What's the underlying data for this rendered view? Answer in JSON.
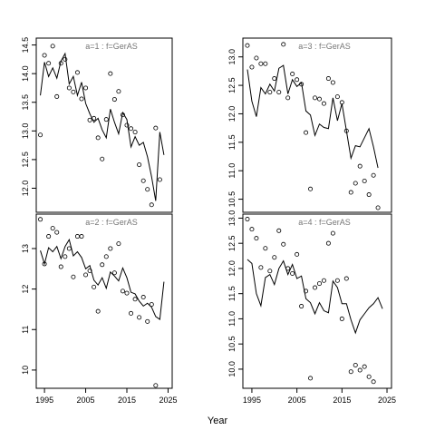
{
  "figure": {
    "xlabel": "Year"
  },
  "chart_data": [
    {
      "type": "line",
      "title": "a=1 : f=GerAS",
      "xlim": [
        1993,
        2026
      ],
      "ylim": [
        11.58,
        14.62
      ],
      "xticks": [
        1995,
        2005,
        2015,
        2025
      ],
      "yticks": [
        12.0,
        12.5,
        13.0,
        13.5,
        14.0,
        14.5
      ],
      "yticklabels": [
        "12.0",
        "12.5",
        "13.0",
        "13.5",
        "14.0",
        "14.5"
      ],
      "show_xticks": false,
      "x": [
        1994,
        1995,
        1996,
        1997,
        1998,
        1999,
        2000,
        2001,
        2002,
        2003,
        2004,
        2005,
        2006,
        2007,
        2008,
        2009,
        2010,
        2011,
        2012,
        2013,
        2014,
        2015,
        2016,
        2017,
        2018,
        2019,
        2020,
        2021,
        2022,
        2023,
        2024
      ],
      "series": [
        {
          "style": "points",
          "values": [
            12.93,
            14.32,
            14.18,
            14.48,
            13.6,
            14.18,
            14.25,
            13.75,
            13.68,
            14.02,
            13.56,
            13.75,
            13.19,
            13.22,
            12.88,
            12.51,
            13.2,
            14.0,
            13.55,
            13.69,
            13.28,
            13.1,
            13.04,
            12.98,
            12.41,
            12.13,
            11.98,
            11.71,
            13.05,
            12.15,
            null
          ]
        },
        {
          "style": "line",
          "values": [
            13.62,
            14.2,
            13.95,
            14.1,
            13.92,
            14.22,
            14.35,
            13.82,
            13.95,
            13.62,
            13.85,
            13.48,
            13.3,
            13.15,
            13.22,
            13.02,
            12.88,
            13.38,
            13.15,
            12.95,
            13.32,
            13.2,
            12.72,
            12.9,
            12.75,
            12.8,
            12.55,
            12.2,
            11.78,
            12.98,
            12.58
          ]
        }
      ]
    },
    {
      "type": "line",
      "title": "a=3 : f=GerAS",
      "xlim": [
        1993,
        2026
      ],
      "ylim": [
        10.27,
        13.33
      ],
      "xticks": [
        1995,
        2005,
        2015,
        2025
      ],
      "yticks": [
        10.5,
        11.0,
        11.5,
        12.0,
        12.5,
        13.0
      ],
      "yticklabels": [
        "10.5",
        "11.0",
        "11.5",
        "12.0",
        "12.5",
        "13.0"
      ],
      "show_xticks": false,
      "x": [
        1994,
        1995,
        1996,
        1997,
        1998,
        1999,
        2000,
        2001,
        2002,
        2003,
        2004,
        2005,
        2006,
        2007,
        2008,
        2009,
        2010,
        2011,
        2012,
        2013,
        2014,
        2015,
        2016,
        2017,
        2018,
        2019,
        2020,
        2021,
        2022,
        2023,
        2024
      ],
      "series": [
        {
          "style": "points",
          "values": [
            13.2,
            12.82,
            12.98,
            12.88,
            12.88,
            12.38,
            12.62,
            12.38,
            13.22,
            12.28,
            12.7,
            12.6,
            12.52,
            11.67,
            10.68,
            12.28,
            12.26,
            12.18,
            12.62,
            12.55,
            12.3,
            12.2,
            11.7,
            10.62,
            10.78,
            11.08,
            10.82,
            10.58,
            10.92,
            10.35,
            null
          ]
        },
        {
          "style": "line",
          "values": [
            12.78,
            12.22,
            11.95,
            12.46,
            12.35,
            12.52,
            12.4,
            12.8,
            12.85,
            12.35,
            12.6,
            12.48,
            12.55,
            12.05,
            11.98,
            11.62,
            11.82,
            11.76,
            11.74,
            12.28,
            11.88,
            12.18,
            11.7,
            11.22,
            11.44,
            11.42,
            11.58,
            11.74,
            11.42,
            11.05,
            null
          ]
        }
      ]
    },
    {
      "type": "line",
      "title": "a=2 : f=GerAS",
      "xlim": [
        1993,
        2026
      ],
      "ylim": [
        9.55,
        13.85
      ],
      "xticks": [
        1995,
        2005,
        2015,
        2025
      ],
      "xticklabels": [
        "1995",
        "2005",
        "2015",
        "2025"
      ],
      "yticks": [
        10,
        11,
        12,
        13
      ],
      "yticklabels": [
        "10",
        "11",
        "12",
        "13"
      ],
      "show_xticks": true,
      "x": [
        1994,
        1995,
        1996,
        1997,
        1998,
        1999,
        2000,
        2001,
        2002,
        2003,
        2004,
        2005,
        2006,
        2007,
        2008,
        2009,
        2010,
        2011,
        2012,
        2013,
        2014,
        2015,
        2016,
        2017,
        2018,
        2019,
        2020,
        2021,
        2022,
        2023,
        2024
      ],
      "series": [
        {
          "style": "points",
          "values": [
            13.72,
            12.62,
            13.3,
            13.5,
            13.4,
            12.55,
            12.8,
            13.0,
            12.3,
            13.3,
            13.3,
            12.35,
            12.45,
            12.05,
            11.45,
            12.6,
            12.8,
            13.0,
            12.4,
            13.12,
            11.95,
            11.9,
            11.4,
            11.75,
            11.3,
            11.8,
            11.2,
            11.62,
            9.62,
            null,
            null
          ]
        },
        {
          "style": "line",
          "values": [
            12.95,
            12.62,
            13.02,
            12.92,
            13.05,
            12.75,
            13.05,
            13.22,
            12.82,
            12.92,
            12.78,
            12.5,
            12.58,
            12.22,
            12.1,
            12.28,
            12.02,
            12.42,
            12.32,
            12.2,
            12.52,
            12.28,
            11.92,
            11.88,
            11.7,
            11.58,
            11.65,
            11.55,
            11.32,
            11.25,
            12.18
          ]
        }
      ]
    },
    {
      "type": "line",
      "title": "a=4 : f=GerAS",
      "xlim": [
        1993,
        2026
      ],
      "ylim": [
        9.62,
        13.08
      ],
      "xticks": [
        1995,
        2005,
        2015,
        2025
      ],
      "xticklabels": [
        "1995",
        "2005",
        "2015",
        "2025"
      ],
      "yticks": [
        10.0,
        10.5,
        11.0,
        11.5,
        12.0,
        12.5,
        13.0
      ],
      "yticklabels": [
        "10.0",
        "10.5",
        "11.0",
        "11.5",
        "12.0",
        "12.5",
        "13.0"
      ],
      "show_xticks": true,
      "x": [
        1994,
        1995,
        1996,
        1997,
        1998,
        1999,
        2000,
        2001,
        2002,
        2003,
        2004,
        2005,
        2006,
        2007,
        2008,
        2009,
        2010,
        2011,
        2012,
        2013,
        2014,
        2015,
        2016,
        2017,
        2018,
        2019,
        2020,
        2021,
        2022,
        2023,
        2024
      ],
      "series": [
        {
          "style": "points",
          "values": [
            12.98,
            12.78,
            12.6,
            12.02,
            12.4,
            11.95,
            12.22,
            12.75,
            12.48,
            12.0,
            11.9,
            12.28,
            11.25,
            11.55,
            9.82,
            11.62,
            11.7,
            11.76,
            12.5,
            12.7,
            11.76,
            11.0,
            11.8,
            9.95,
            10.08,
            9.98,
            10.05,
            9.85,
            9.75,
            null,
            null
          ]
        },
        {
          "style": "line",
          "values": [
            12.18,
            12.1,
            11.5,
            11.26,
            11.82,
            11.88,
            11.68,
            12.0,
            12.15,
            11.88,
            12.08,
            11.8,
            11.85,
            11.4,
            11.32,
            11.1,
            11.32,
            11.16,
            11.12,
            11.75,
            11.62,
            11.3,
            11.3,
            10.98,
            10.72,
            10.98,
            11.1,
            11.22,
            11.3,
            11.42,
            11.2
          ]
        }
      ]
    }
  ]
}
